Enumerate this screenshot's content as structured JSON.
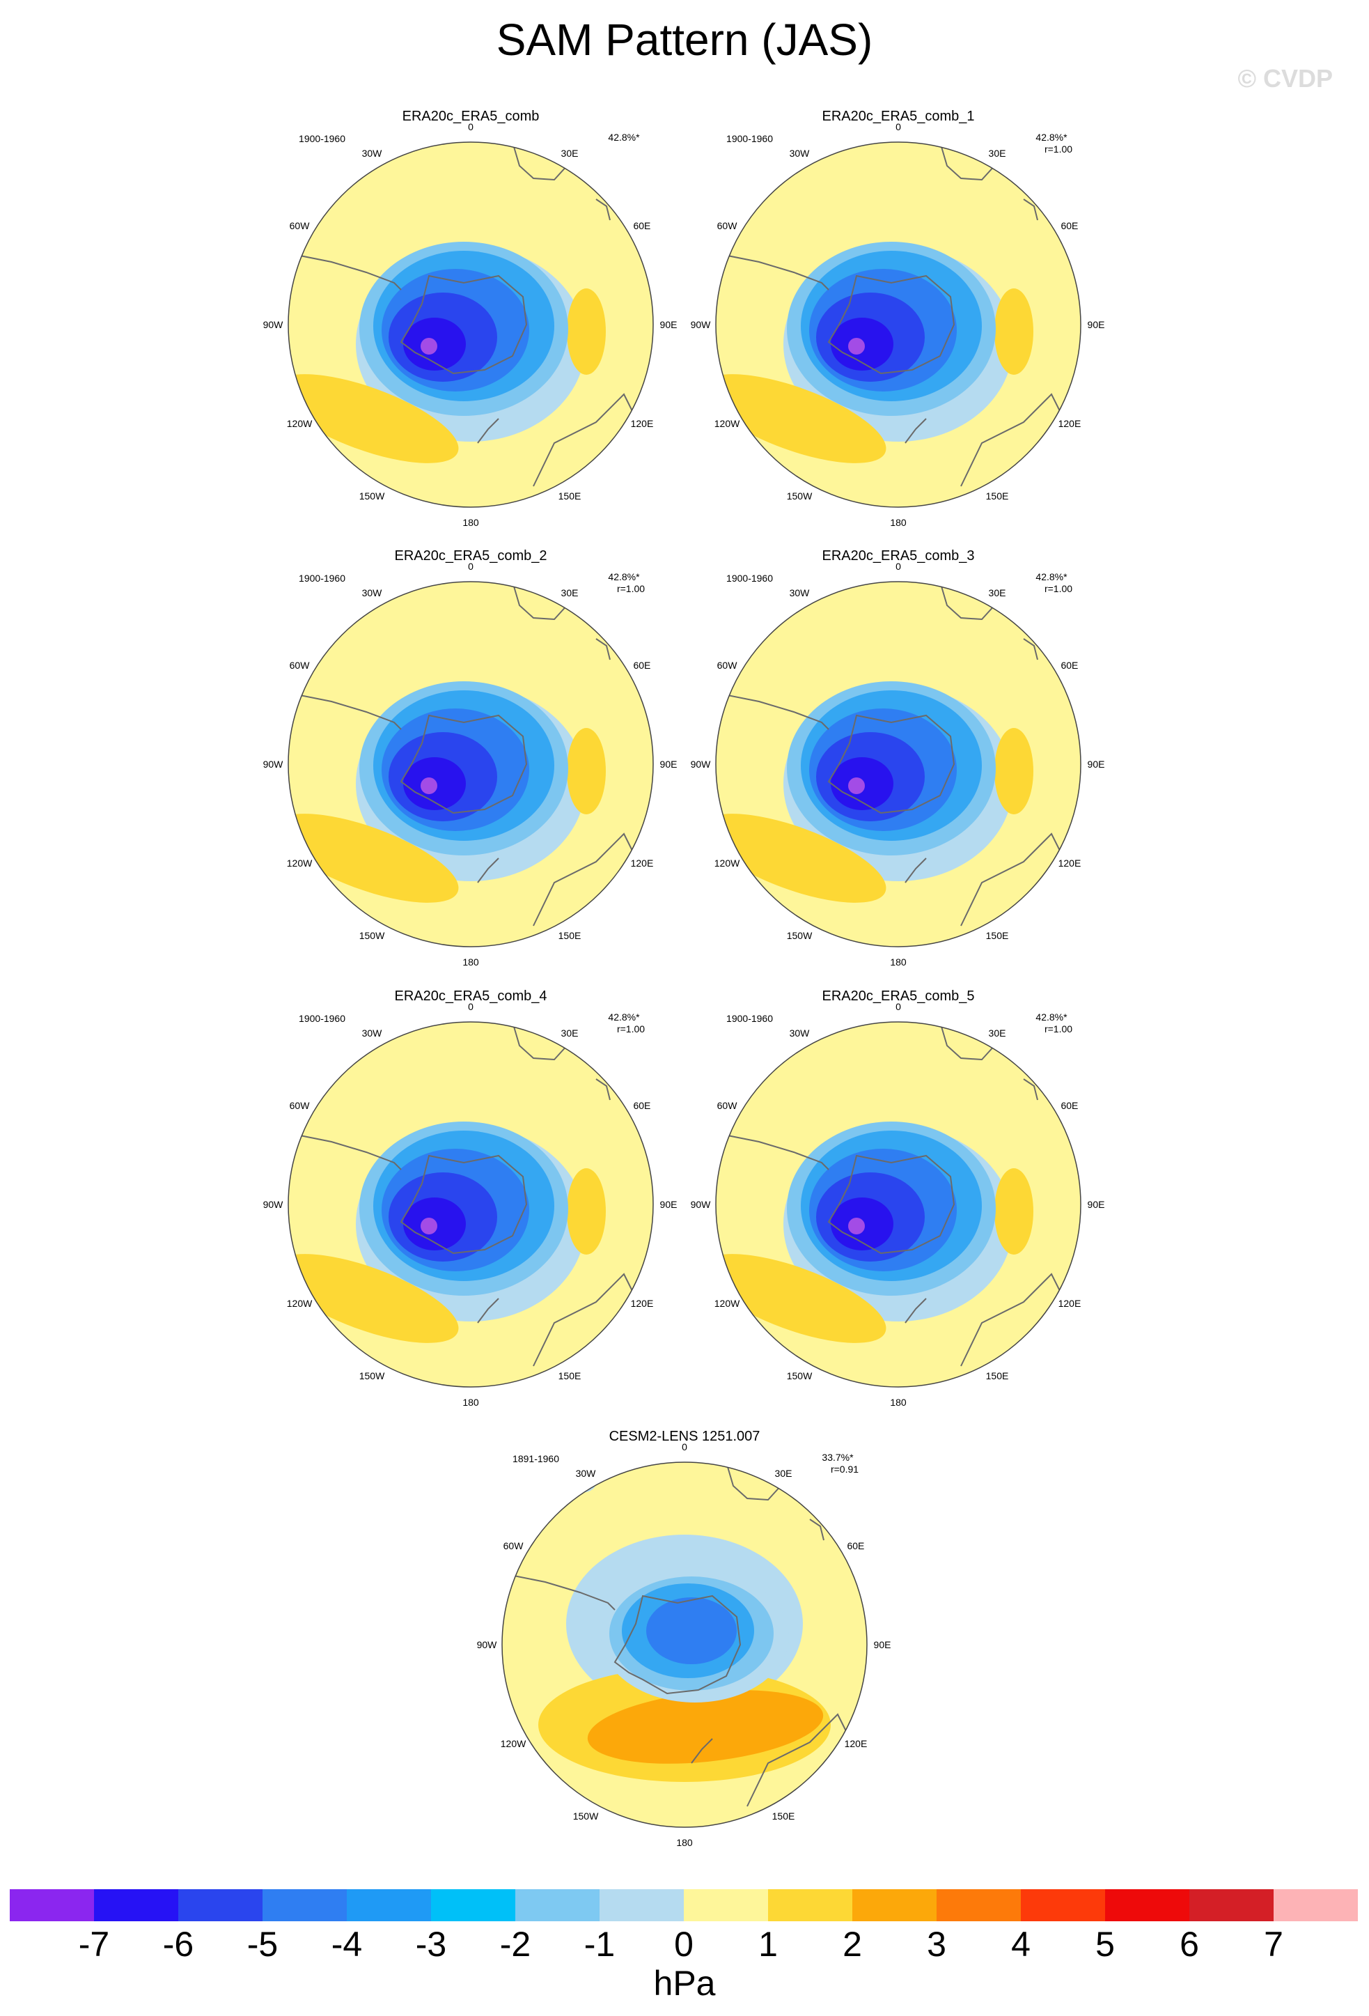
{
  "title": "SAM Pattern (JAS)",
  "watermark": "© CVDP",
  "colors": {
    "ocean": "#b5dbf0",
    "blue_light": "#7dc6f0",
    "blue_mid": "#35a7f2",
    "blue_strong": "#2f7ef2",
    "blue_deep": "#2a45ee",
    "blue_darkest": "#2812ee",
    "magenta": "#a34ce6",
    "yellow_light": "#fef69a",
    "yellow": "#fdd835",
    "orange": "#fca80a",
    "coast": "#6a6a6a"
  },
  "panels": [
    {
      "title": "ERA20c_ERA5_comb",
      "period": "1900-1960",
      "stat": "42.8%*",
      "corr": ""
    },
    {
      "title": "ERA20c_ERA5_comb_1",
      "period": "1900-1960",
      "stat": "42.8%*",
      "corr": "r=1.00"
    },
    {
      "title": "ERA20c_ERA5_comb_2",
      "period": "1900-1960",
      "stat": "42.8%*",
      "corr": "r=1.00"
    },
    {
      "title": "ERA20c_ERA5_comb_3",
      "period": "1900-1960",
      "stat": "42.8%*",
      "corr": "r=1.00"
    },
    {
      "title": "ERA20c_ERA5_comb_4",
      "period": "1900-1960",
      "stat": "42.8%*",
      "corr": "r=1.00"
    },
    {
      "title": "ERA20c_ERA5_comb_5",
      "period": "1900-1960",
      "stat": "42.8%*",
      "corr": "r=1.00"
    },
    {
      "title": "CESM2-LENS 1251.007",
      "period": "1891-1960",
      "stat": "33.7%*",
      "corr": "r=0.91"
    }
  ],
  "longitude_labels": [
    "0",
    "30E",
    "60E",
    "90E",
    "120E",
    "150E",
    "180",
    "150W",
    "120W",
    "90W",
    "60W",
    "30W"
  ],
  "colorbar": {
    "colors": [
      "#8b26ef",
      "#2612f5",
      "#2a45ee",
      "#2f7ef2",
      "#1f9af5",
      "#00c0f8",
      "#7ec9f2",
      "#b5dbf0",
      "#fef69a",
      "#fdd835",
      "#fca80a",
      "#fd7a0a",
      "#fd3a0a",
      "#ee0a0a",
      "#d41f26",
      "#fdb3b6"
    ],
    "ticks": [
      "-7",
      "-6",
      "-5",
      "-4",
      "-3",
      "-2",
      "-1",
      "0",
      "1",
      "2",
      "3",
      "4",
      "5",
      "6",
      "7"
    ],
    "unit": "hPa"
  }
}
